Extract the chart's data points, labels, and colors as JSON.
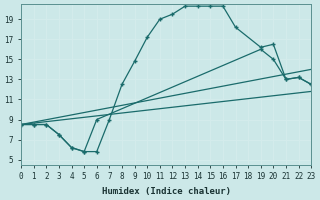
{
  "xlabel": "Humidex (Indice chaleur)",
  "bg_color": "#cce8e8",
  "line_color": "#1a6b6b",
  "grid_color": "#d4ecec",
  "xlim": [
    0,
    23
  ],
  "ylim": [
    4.5,
    20.5
  ],
  "xticks": [
    0,
    1,
    2,
    3,
    4,
    5,
    6,
    7,
    8,
    9,
    10,
    11,
    12,
    13,
    14,
    15,
    16,
    17,
    18,
    19,
    20,
    21,
    22,
    23
  ],
  "yticks": [
    5,
    7,
    9,
    11,
    13,
    15,
    17,
    19
  ],
  "curve1_x": [
    0,
    1,
    2,
    3,
    4,
    5,
    6,
    7,
    8,
    9,
    10,
    11,
    12,
    13,
    14,
    15,
    16,
    17,
    19,
    20,
    21,
    22,
    23
  ],
  "curve1_y": [
    8.5,
    8.5,
    8.5,
    7.5,
    6.2,
    5.8,
    5.8,
    9.0,
    12.5,
    14.8,
    17.2,
    19.0,
    19.5,
    20.3,
    20.3,
    20.3,
    20.3,
    18.2,
    16.2,
    16.5,
    13.0,
    13.2,
    12.5
  ],
  "curve2_x": [
    0,
    1,
    2,
    3,
    4,
    5,
    6,
    19,
    20,
    21,
    22,
    23
  ],
  "curve2_y": [
    8.5,
    8.5,
    8.5,
    7.5,
    6.2,
    5.8,
    9.0,
    16.0,
    15.0,
    13.0,
    13.2,
    12.5
  ],
  "line3_x": [
    0,
    23
  ],
  "line3_y": [
    8.5,
    14.0
  ],
  "line4_x": [
    0,
    23
  ],
  "line4_y": [
    8.5,
    11.8
  ]
}
